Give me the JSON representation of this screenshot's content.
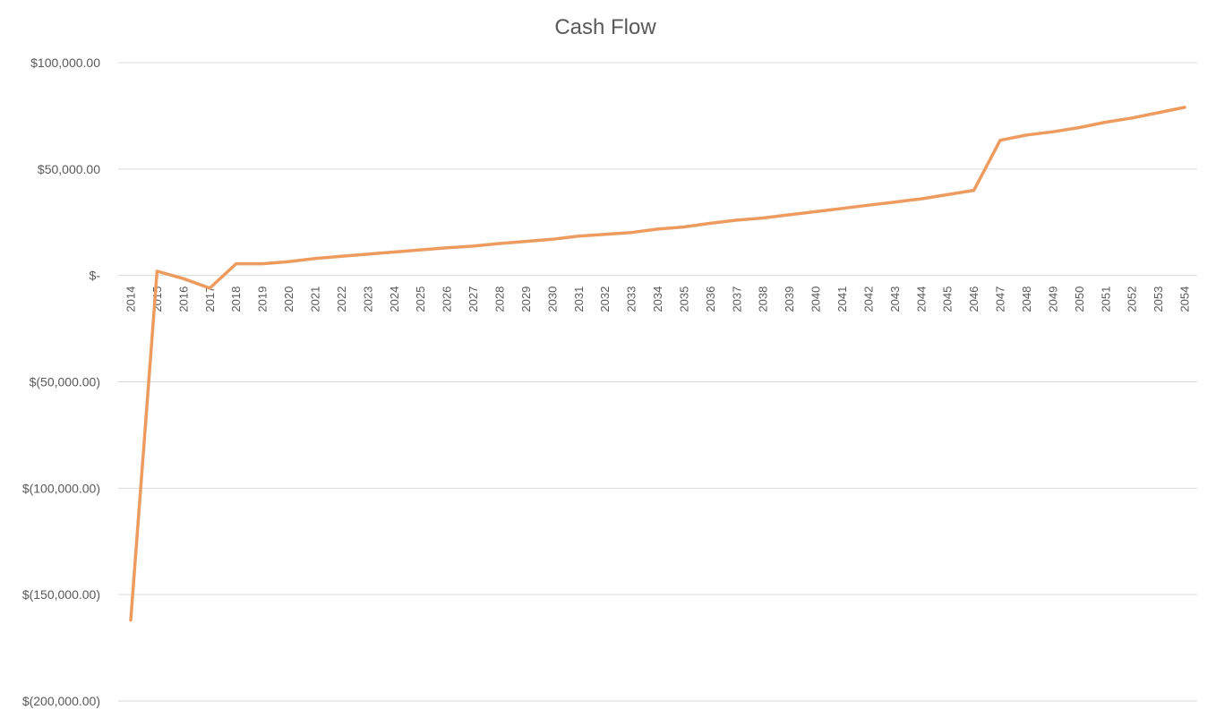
{
  "chart_data": {
    "type": "line",
    "title": "Cash Flow",
    "xlabel": "",
    "ylabel": "",
    "ylim": [
      -200000,
      100000
    ],
    "y_ticks": [
      100000,
      50000,
      0,
      -50000,
      -100000,
      -150000,
      -200000
    ],
    "y_tick_labels": [
      "$100,000.00",
      "$50,000.00",
      "$-",
      "$(50,000.00)",
      "$(100,000.00)",
      "$(150,000.00)",
      "$(200,000.00)"
    ],
    "grid": true,
    "legend": "none",
    "categories": [
      "2014",
      "2015",
      "2016",
      "2017",
      "2018",
      "2019",
      "2020",
      "2021",
      "2022",
      "2023",
      "2024",
      "2025",
      "2026",
      "2027",
      "2028",
      "2029",
      "2030",
      "2031",
      "2032",
      "2033",
      "2034",
      "2035",
      "2036",
      "2037",
      "2038",
      "2039",
      "2040",
      "2041",
      "2042",
      "2043",
      "2044",
      "2045",
      "2046",
      "2047",
      "2048",
      "2049",
      "2050",
      "2051",
      "2052",
      "2053",
      "2054"
    ],
    "series": [
      {
        "color": "#ED9B5E",
        "values": [
          -162000,
          2000,
          -1500,
          -6000,
          5500,
          5500,
          6500,
          8000,
          9000,
          10000,
          11000,
          12000,
          13000,
          13800,
          15000,
          16000,
          17000,
          18500,
          19300,
          20200,
          21800,
          22800,
          24500,
          26000,
          27000,
          28500,
          30000,
          31500,
          33000,
          34500,
          36000,
          38000,
          40000,
          63500,
          66000,
          67500,
          69500,
          72000,
          74000,
          76500,
          79000
        ]
      }
    ]
  }
}
